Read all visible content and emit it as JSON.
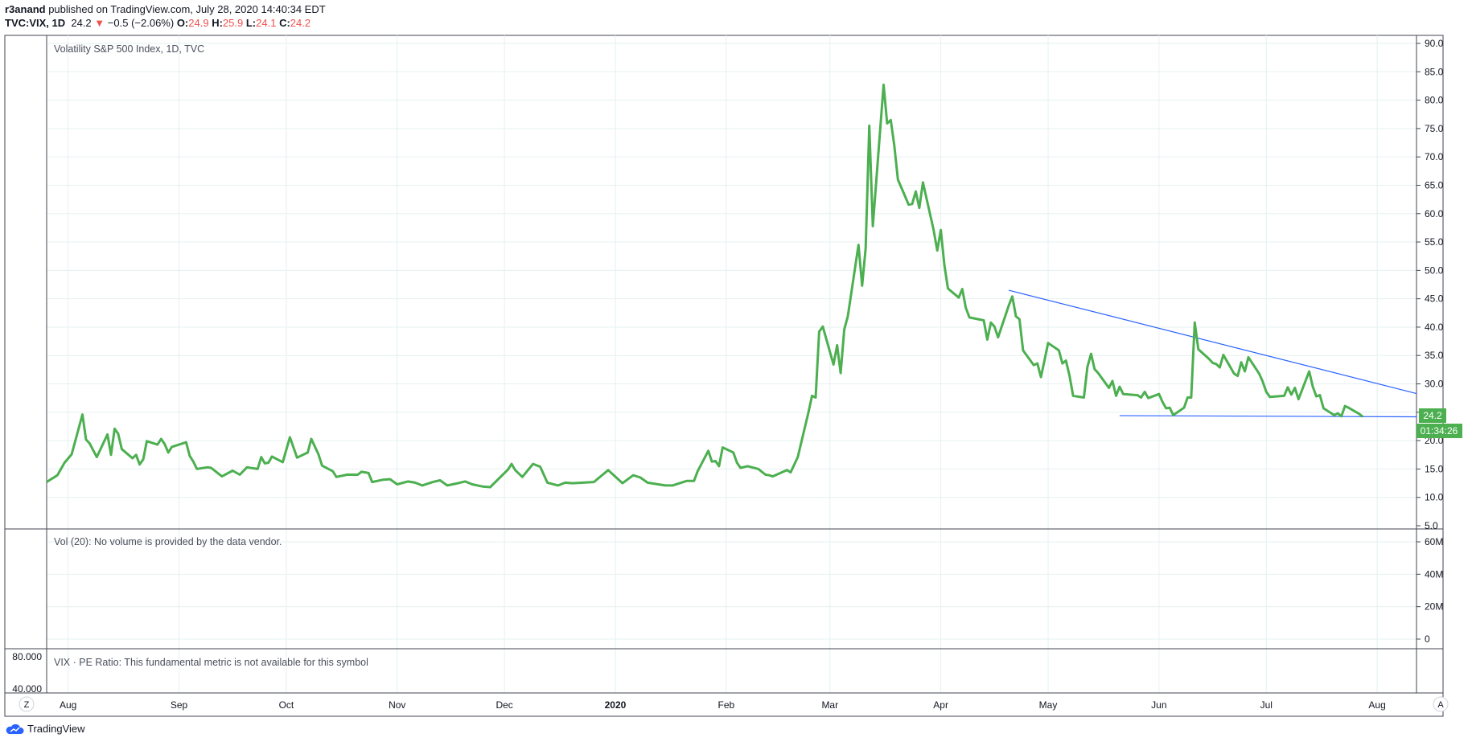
{
  "header": {
    "publisher": "r3anand",
    "published_text": "published on TradingView.com, July 28, 2020 14:40:34 EDT",
    "symbol": "TVC:VIX, 1D",
    "last": "24.2",
    "change_arrow": "▼",
    "change": "−0.5 (−2.06%)",
    "open_label": "O:",
    "open": "24.9",
    "high_label": "H:",
    "high": "25.9",
    "low_label": "L:",
    "low": "24.1",
    "close_label": "C:",
    "close": "24.2"
  },
  "panes": {
    "main_title": "Volatility S&P 500 Index, 1D, TVC",
    "volume_title": "Vol (20): No volume is provided by the data vendor.",
    "pe_title": "VIX · PE Ratio: This fundamental metric is not available for this symbol",
    "price_badge": "24.2",
    "timer_badge": "01:34:26",
    "left_axis_labels": [
      "80.000",
      "40.000"
    ],
    "left_corner_button": "Z",
    "right_corner_button": "A"
  },
  "footer": {
    "brand": "TradingView"
  },
  "colors": {
    "series": "#4caf50",
    "trendline": "#2962ff",
    "negative": "#ef5350",
    "grid": "#e6f0f0"
  },
  "chart_data": {
    "type": "line",
    "title": "Volatility S&P 500 Index, 1D, TVC",
    "x_tick_labels": [
      "Aug",
      "Sep",
      "Oct",
      "Nov",
      "Dec",
      "2020",
      "Feb",
      "Mar",
      "Apr",
      "May",
      "Jun",
      "Jul",
      "Aug"
    ],
    "x_tick_dates": [
      "2019-08-01",
      "2019-09-01",
      "2019-10-01",
      "2019-11-01",
      "2019-12-01",
      "2020-01-01",
      "2020-02-01",
      "2020-03-01",
      "2020-04-01",
      "2020-05-01",
      "2020-06-01",
      "2020-07-01",
      "2020-08-01"
    ],
    "xlim": [
      "2019-07-26",
      "2020-08-12"
    ],
    "ylim": [
      5,
      90
    ],
    "y_ticks": [
      "5.0",
      "10.0",
      "15.0",
      "20.0",
      "25.0",
      "30.0",
      "35.0",
      "40.0",
      "45.0",
      "50.0",
      "55.0",
      "60.0",
      "65.0",
      "70.0",
      "75.0",
      "80.0",
      "85.0",
      "90.0"
    ],
    "volume_axis_labels": [
      "60M",
      "40M",
      "20M",
      "0"
    ],
    "volume_ylim": [
      0,
      60
    ],
    "grid": true,
    "series": [
      {
        "points": [
          [
            "2019-07-26",
            12.7
          ],
          [
            "2019-07-29",
            13.9
          ],
          [
            "2019-07-31",
            16.1
          ],
          [
            "2019-08-02",
            17.6
          ],
          [
            "2019-08-05",
            24.6
          ],
          [
            "2019-08-06",
            20.2
          ],
          [
            "2019-08-07",
            19.5
          ],
          [
            "2019-08-09",
            17.1
          ],
          [
            "2019-08-12",
            21.1
          ],
          [
            "2019-08-13",
            17.5
          ],
          [
            "2019-08-14",
            22.1
          ],
          [
            "2019-08-15",
            21.2
          ],
          [
            "2019-08-16",
            18.5
          ],
          [
            "2019-08-19",
            16.9
          ],
          [
            "2019-08-20",
            17.5
          ],
          [
            "2019-08-21",
            15.8
          ],
          [
            "2019-08-22",
            16.7
          ],
          [
            "2019-08-23",
            19.9
          ],
          [
            "2019-08-26",
            19.3
          ],
          [
            "2019-08-27",
            20.3
          ],
          [
            "2019-08-28",
            19.4
          ],
          [
            "2019-08-29",
            17.9
          ],
          [
            "2019-08-30",
            18.9
          ],
          [
            "2019-09-03",
            19.7
          ],
          [
            "2019-09-04",
            17.3
          ],
          [
            "2019-09-05",
            16.3
          ],
          [
            "2019-09-06",
            15.0
          ],
          [
            "2019-09-09",
            15.3
          ],
          [
            "2019-09-10",
            15.2
          ],
          [
            "2019-09-12",
            14.2
          ],
          [
            "2019-09-13",
            13.7
          ],
          [
            "2019-09-16",
            14.7
          ],
          [
            "2019-09-18",
            14.0
          ],
          [
            "2019-09-20",
            15.3
          ],
          [
            "2019-09-23",
            15.0
          ],
          [
            "2019-09-24",
            17.1
          ],
          [
            "2019-09-25",
            16.0
          ],
          [
            "2019-09-26",
            16.1
          ],
          [
            "2019-09-27",
            17.2
          ],
          [
            "2019-09-30",
            16.2
          ],
          [
            "2019-10-02",
            20.6
          ],
          [
            "2019-10-04",
            17.0
          ],
          [
            "2019-10-07",
            17.9
          ],
          [
            "2019-10-08",
            20.3
          ],
          [
            "2019-10-10",
            17.6
          ],
          [
            "2019-10-11",
            15.6
          ],
          [
            "2019-10-14",
            14.6
          ],
          [
            "2019-10-15",
            13.6
          ],
          [
            "2019-10-18",
            14.0
          ],
          [
            "2019-10-21",
            14.0
          ],
          [
            "2019-10-22",
            14.5
          ],
          [
            "2019-10-24",
            14.3
          ],
          [
            "2019-10-25",
            12.7
          ],
          [
            "2019-10-28",
            13.1
          ],
          [
            "2019-10-30",
            13.2
          ],
          [
            "2019-11-01",
            12.3
          ],
          [
            "2019-11-04",
            12.8
          ],
          [
            "2019-11-06",
            12.6
          ],
          [
            "2019-11-08",
            12.1
          ],
          [
            "2019-11-11",
            12.7
          ],
          [
            "2019-11-13",
            13.0
          ],
          [
            "2019-11-15",
            12.1
          ],
          [
            "2019-11-18",
            12.5
          ],
          [
            "2019-11-20",
            12.8
          ],
          [
            "2019-11-22",
            12.3
          ],
          [
            "2019-11-25",
            11.9
          ],
          [
            "2019-11-27",
            11.8
          ],
          [
            "2019-12-02",
            14.9
          ],
          [
            "2019-12-03",
            15.9
          ],
          [
            "2019-12-04",
            14.8
          ],
          [
            "2019-12-06",
            13.6
          ],
          [
            "2019-12-09",
            15.9
          ],
          [
            "2019-12-11",
            15.4
          ],
          [
            "2019-12-13",
            12.6
          ],
          [
            "2019-12-16",
            12.1
          ],
          [
            "2019-12-18",
            12.6
          ],
          [
            "2019-12-20",
            12.5
          ],
          [
            "2019-12-23",
            12.6
          ],
          [
            "2019-12-26",
            12.7
          ],
          [
            "2019-12-30",
            14.8
          ],
          [
            "2020-01-03",
            12.5
          ],
          [
            "2020-01-06",
            13.9
          ],
          [
            "2020-01-08",
            13.5
          ],
          [
            "2020-01-10",
            12.6
          ],
          [
            "2020-01-13",
            12.3
          ],
          [
            "2020-01-15",
            12.1
          ],
          [
            "2020-01-17",
            12.1
          ],
          [
            "2020-01-21",
            12.9
          ],
          [
            "2020-01-23",
            12.9
          ],
          [
            "2020-01-24",
            14.6
          ],
          [
            "2020-01-27",
            18.2
          ],
          [
            "2020-01-28",
            16.3
          ],
          [
            "2020-01-29",
            16.4
          ],
          [
            "2020-01-30",
            15.5
          ],
          [
            "2020-01-31",
            18.8
          ],
          [
            "2020-02-03",
            17.9
          ],
          [
            "2020-02-04",
            16.1
          ],
          [
            "2020-02-05",
            15.2
          ],
          [
            "2020-02-07",
            15.5
          ],
          [
            "2020-02-10",
            15.0
          ],
          [
            "2020-02-12",
            14.0
          ],
          [
            "2020-02-13",
            13.9
          ],
          [
            "2020-02-14",
            13.7
          ],
          [
            "2020-02-18",
            14.8
          ],
          [
            "2020-02-19",
            14.4
          ],
          [
            "2020-02-21",
            17.1
          ],
          [
            "2020-02-24",
            25.0
          ],
          [
            "2020-02-25",
            27.9
          ],
          [
            "2020-02-26",
            27.6
          ],
          [
            "2020-02-27",
            39.2
          ],
          [
            "2020-02-28",
            40.1
          ],
          [
            "2020-03-02",
            33.4
          ],
          [
            "2020-03-03",
            36.8
          ],
          [
            "2020-03-04",
            31.9
          ],
          [
            "2020-03-05",
            39.6
          ],
          [
            "2020-03-06",
            41.9
          ],
          [
            "2020-03-09",
            54.5
          ],
          [
            "2020-03-10",
            47.3
          ],
          [
            "2020-03-11",
            53.9
          ],
          [
            "2020-03-12",
            75.5
          ],
          [
            "2020-03-13",
            57.8
          ],
          [
            "2020-03-16",
            82.7
          ],
          [
            "2020-03-17",
            75.9
          ],
          [
            "2020-03-18",
            76.5
          ],
          [
            "2020-03-19",
            72.0
          ],
          [
            "2020-03-20",
            66.0
          ],
          [
            "2020-03-23",
            61.6
          ],
          [
            "2020-03-24",
            61.7
          ],
          [
            "2020-03-25",
            63.9
          ],
          [
            "2020-03-26",
            61.0
          ],
          [
            "2020-03-27",
            65.5
          ],
          [
            "2020-03-30",
            57.1
          ],
          [
            "2020-03-31",
            53.5
          ],
          [
            "2020-04-01",
            57.1
          ],
          [
            "2020-04-02",
            50.9
          ],
          [
            "2020-04-03",
            46.8
          ],
          [
            "2020-04-06",
            45.2
          ],
          [
            "2020-04-07",
            46.7
          ],
          [
            "2020-04-08",
            43.4
          ],
          [
            "2020-04-09",
            41.7
          ],
          [
            "2020-04-13",
            41.2
          ],
          [
            "2020-04-14",
            37.8
          ],
          [
            "2020-04-15",
            40.8
          ],
          [
            "2020-04-16",
            40.1
          ],
          [
            "2020-04-17",
            38.2
          ],
          [
            "2020-04-20",
            43.8
          ],
          [
            "2020-04-21",
            45.4
          ],
          [
            "2020-04-22",
            41.9
          ],
          [
            "2020-04-23",
            41.4
          ],
          [
            "2020-04-24",
            35.9
          ],
          [
            "2020-04-27",
            33.3
          ],
          [
            "2020-04-28",
            33.6
          ],
          [
            "2020-04-29",
            31.2
          ],
          [
            "2020-04-30",
            34.2
          ],
          [
            "2020-05-01",
            37.2
          ],
          [
            "2020-05-04",
            35.9
          ],
          [
            "2020-05-05",
            33.6
          ],
          [
            "2020-05-06",
            34.1
          ],
          [
            "2020-05-07",
            31.4
          ],
          [
            "2020-05-08",
            27.9
          ],
          [
            "2020-05-11",
            27.6
          ],
          [
            "2020-05-12",
            33.0
          ],
          [
            "2020-05-13",
            35.3
          ],
          [
            "2020-05-14",
            32.6
          ],
          [
            "2020-05-15",
            31.9
          ],
          [
            "2020-05-18",
            29.3
          ],
          [
            "2020-05-19",
            30.5
          ],
          [
            "2020-05-20",
            27.9
          ],
          [
            "2020-05-21",
            29.5
          ],
          [
            "2020-05-22",
            28.2
          ],
          [
            "2020-05-26",
            28.0
          ],
          [
            "2020-05-27",
            27.6
          ],
          [
            "2020-05-28",
            28.6
          ],
          [
            "2020-05-29",
            27.5
          ],
          [
            "2020-06-01",
            28.2
          ],
          [
            "2020-06-02",
            26.8
          ],
          [
            "2020-06-03",
            25.7
          ],
          [
            "2020-06-04",
            25.8
          ],
          [
            "2020-06-05",
            24.5
          ],
          [
            "2020-06-08",
            25.8
          ],
          [
            "2020-06-09",
            27.6
          ],
          [
            "2020-06-10",
            27.6
          ],
          [
            "2020-06-11",
            40.8
          ],
          [
            "2020-06-12",
            36.1
          ],
          [
            "2020-06-15",
            34.4
          ],
          [
            "2020-06-16",
            33.7
          ],
          [
            "2020-06-17",
            33.5
          ],
          [
            "2020-06-18",
            32.9
          ],
          [
            "2020-06-19",
            35.1
          ],
          [
            "2020-06-22",
            31.8
          ],
          [
            "2020-06-23",
            31.4
          ],
          [
            "2020-06-24",
            33.8
          ],
          [
            "2020-06-25",
            32.2
          ],
          [
            "2020-06-26",
            34.7
          ],
          [
            "2020-06-29",
            31.8
          ],
          [
            "2020-06-30",
            30.4
          ],
          [
            "2020-07-01",
            28.6
          ],
          [
            "2020-07-02",
            27.7
          ],
          [
            "2020-07-06",
            27.9
          ],
          [
            "2020-07-07",
            29.4
          ],
          [
            "2020-07-08",
            28.1
          ],
          [
            "2020-07-09",
            29.3
          ],
          [
            "2020-07-10",
            27.3
          ],
          [
            "2020-07-13",
            32.2
          ],
          [
            "2020-07-14",
            29.5
          ],
          [
            "2020-07-15",
            27.8
          ],
          [
            "2020-07-16",
            28.0
          ],
          [
            "2020-07-17",
            25.7
          ],
          [
            "2020-07-20",
            24.5
          ],
          [
            "2020-07-21",
            24.8
          ],
          [
            "2020-07-22",
            24.3
          ],
          [
            "2020-07-23",
            26.1
          ],
          [
            "2020-07-24",
            25.8
          ],
          [
            "2020-07-27",
            24.7
          ],
          [
            "2020-07-28",
            24.2
          ]
        ]
      }
    ],
    "trendlines": [
      {
        "from": [
          "2020-04-20",
          46.5
        ],
        "to": [
          "2020-08-12",
          28.3
        ]
      },
      {
        "from": [
          "2020-05-21",
          24.4
        ],
        "to": [
          "2020-08-12",
          24.2
        ]
      }
    ]
  }
}
